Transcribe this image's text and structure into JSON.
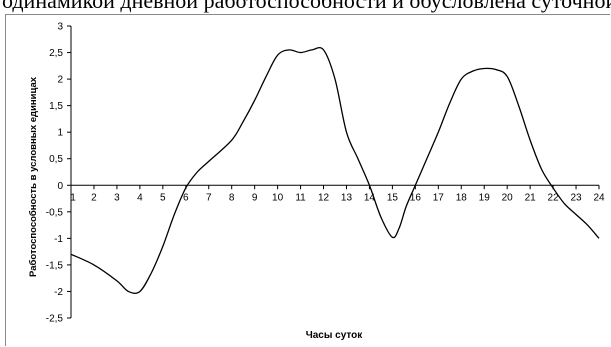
{
  "header": {
    "cropped_text": "одйнамикой дневной работоспособности и обусловлена суточной периодичностью"
  },
  "chart_data": {
    "type": "line",
    "title": "",
    "xlabel": "Часы суток",
    "ylabel": "Работоспособность в условных единицах",
    "xlim": [
      1,
      24
    ],
    "ylim": [
      -2.5,
      3
    ],
    "x_ticks": [
      "1",
      "2",
      "3",
      "4",
      "5",
      "6",
      "7",
      "8",
      "9",
      "10",
      "11",
      "12",
      "13",
      "14",
      "15",
      "16",
      "17",
      "18",
      "19",
      "20",
      "21",
      "22",
      "23",
      "24"
    ],
    "y_ticks": [
      "3",
      "2,5",
      "2",
      "1,5",
      "1",
      "0,5",
      "0",
      "-0,5",
      "-1",
      "-1,5",
      "-2",
      "-2,5"
    ],
    "grid": false,
    "legend": "none",
    "line_color": "#000000",
    "series": [
      {
        "x": [
          1,
          2,
          3,
          3.5,
          4,
          4.5,
          5,
          5.5,
          6,
          6.5,
          7,
          8,
          8.5,
          9,
          9.5,
          10,
          10.5,
          11,
          11.5,
          12,
          12.5,
          13,
          13.5,
          14,
          14.5,
          15,
          15.3,
          15.6,
          16,
          16.5,
          17,
          17.5,
          18,
          18.5,
          19,
          19.5,
          20,
          20.5,
          21,
          21.5,
          22,
          22.5,
          23,
          23.5,
          24
        ],
        "y": [
          -1.3,
          -1.5,
          -1.8,
          -2.0,
          -2.0,
          -1.65,
          -1.15,
          -0.55,
          -0.05,
          0.25,
          0.45,
          0.85,
          1.2,
          1.6,
          2.05,
          2.45,
          2.55,
          2.5,
          2.55,
          2.55,
          2.0,
          1.0,
          0.5,
          0.0,
          -0.6,
          -0.98,
          -0.8,
          -0.4,
          0.0,
          0.5,
          1.0,
          1.55,
          2.0,
          2.15,
          2.2,
          2.18,
          2.05,
          1.5,
          0.85,
          0.3,
          -0.05,
          -0.35,
          -0.55,
          -0.75,
          -1.0
        ]
      }
    ]
  }
}
